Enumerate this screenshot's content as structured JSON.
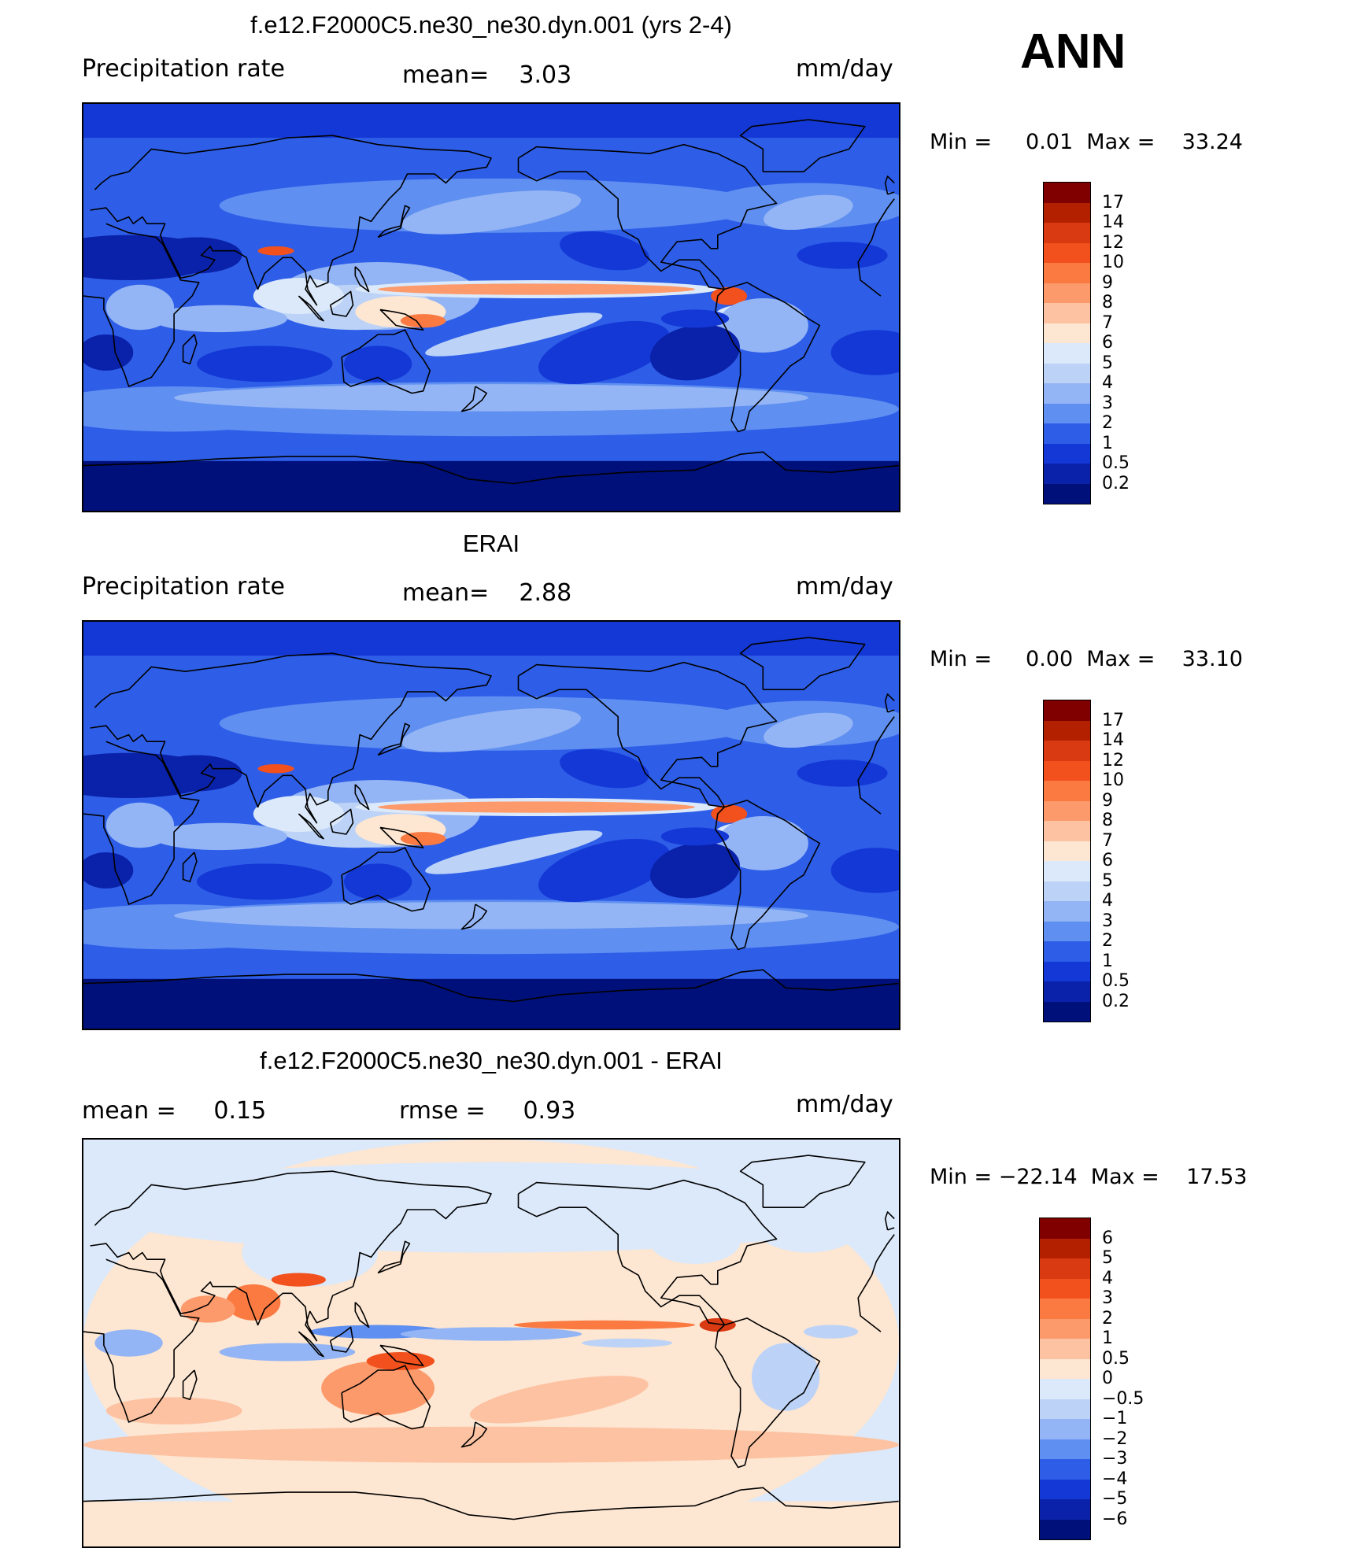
{
  "header": {
    "season": "ANN"
  },
  "panels": [
    {
      "title": "f.e12.F2000C5.ne30_ne30.dyn.001 (yrs 2-4)",
      "left_label": "Precipitation rate",
      "center_label": "mean=    3.03",
      "units": "mm/day",
      "minmax": "Min =     0.01  Max =    33.24",
      "type": "precip",
      "colorbar": {
        "labels": [
          "17",
          "14",
          "12",
          "10",
          "9",
          "8",
          "7",
          "6",
          "5",
          "4",
          "3",
          "2",
          "1",
          "0.5",
          "0.2"
        ],
        "colors": [
          "#800000",
          "#b32000",
          "#d93a12",
          "#f2501c",
          "#fa7a42",
          "#fc9a6c",
          "#fdc2a2",
          "#fde6d2",
          "#dbe9fa",
          "#bcd3f7",
          "#94b5f5",
          "#5f8ff0",
          "#2e5ee8",
          "#1438d6",
          "#0a22aa",
          "#00107a"
        ]
      }
    },
    {
      "title": "ERAI",
      "left_label": "Precipitation rate",
      "center_label": "mean=    2.88",
      "units": "mm/day",
      "minmax": "Min =     0.00  Max =    33.10",
      "type": "precip",
      "colorbar": {
        "labels": [
          "17",
          "14",
          "12",
          "10",
          "9",
          "8",
          "7",
          "6",
          "5",
          "4",
          "3",
          "2",
          "1",
          "0.5",
          "0.2"
        ],
        "colors": [
          "#800000",
          "#b32000",
          "#d93a12",
          "#f2501c",
          "#fa7a42",
          "#fc9a6c",
          "#fdc2a2",
          "#fde6d2",
          "#dbe9fa",
          "#bcd3f7",
          "#94b5f5",
          "#5f8ff0",
          "#2e5ee8",
          "#1438d6",
          "#0a22aa",
          "#00107a"
        ]
      }
    },
    {
      "title": "f.e12.F2000C5.ne30_ne30.dyn.001 - ERAI",
      "left_label": "mean =     0.15",
      "center_label": "rmse =     0.93",
      "units": "mm/day",
      "minmax": "Min = −22.14  Max =    17.53",
      "type": "diff",
      "colorbar": {
        "labels": [
          "6",
          "5",
          "4",
          "3",
          "2",
          "1",
          "0.5",
          "0",
          "−0.5",
          "−1",
          "−2",
          "−3",
          "−4",
          "−5",
          "−6"
        ],
        "colors": [
          "#800000",
          "#b32000",
          "#d93a12",
          "#f2501c",
          "#fa7a42",
          "#fc9a6c",
          "#fdc2a2",
          "#fde6d2",
          "#dbe9fa",
          "#bcd3f7",
          "#94b5f5",
          "#5f8ff0",
          "#2e5ee8",
          "#1438d6",
          "#0a22aa",
          "#00107a"
        ]
      }
    }
  ]
}
